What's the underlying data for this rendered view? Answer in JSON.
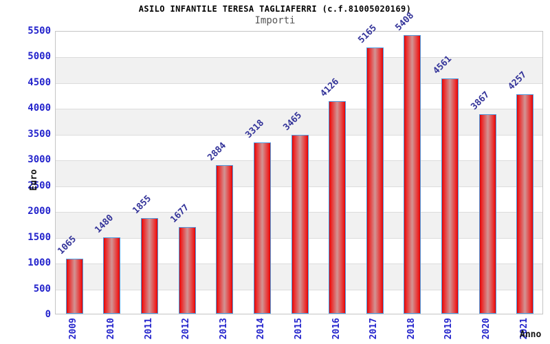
{
  "chart_data": {
    "type": "bar",
    "title": "ASILO INFANTILE TERESA TAGLIAFERRI (c.f.81005020169)",
    "subtitle": "Importi",
    "categories": [
      "2009",
      "2010",
      "2011",
      "2012",
      "2013",
      "2014",
      "2015",
      "2016",
      "2017",
      "2018",
      "2019",
      "2020",
      "2021"
    ],
    "values": [
      1065,
      1480,
      1855,
      1677,
      2884,
      3318,
      3465,
      4126,
      5165,
      5408,
      4561,
      3867,
      4257
    ],
    "xlabel": "Anno",
    "ylabel": "Euro",
    "ylim": [
      0,
      5500
    ],
    "ytick_step": 500,
    "grid": true,
    "bands": "alternating horizontal gray stripes every 500",
    "legend_position": "none",
    "value_labels_rotation_deg": -45,
    "x_labels_rotation_deg": -90
  },
  "colors": {
    "background": "#ffffff",
    "plot_frame": "#c4c4c4",
    "band_gray": "#f1f1f1",
    "gridline": "#dcdcdc",
    "bar_border": "#4f9be0",
    "bar_edge_red": "#d40404",
    "bar_bright_red": "#ee1c1c",
    "bar_center": "#d29494",
    "axis_tick_text": "#2424cc",
    "value_label_text": "#333399",
    "title_text": "#000000",
    "subtitle_text": "#555555",
    "axis_title_text": "#111111"
  }
}
